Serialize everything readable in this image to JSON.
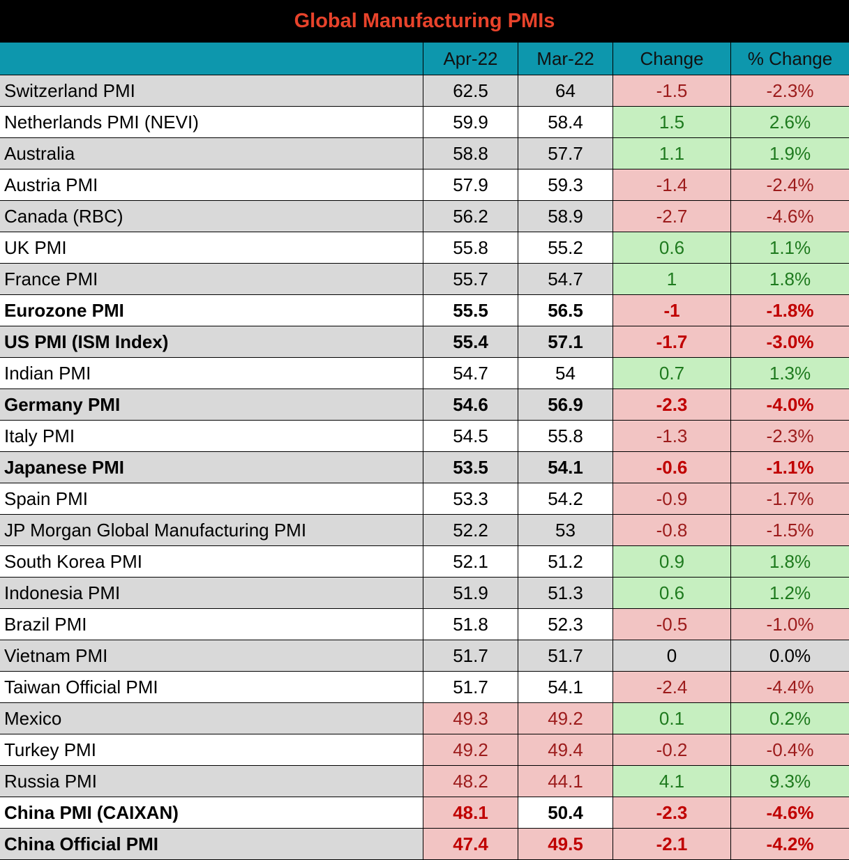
{
  "title": "Global Manufacturing PMIs",
  "colors": {
    "title_bg": "#000000",
    "title_text": "#e8432b",
    "header_bg": "#0d97ad",
    "row_shade": "#d9d9d9",
    "negative_bg": "#f2c4c3",
    "negative_text": "#9c1b1b",
    "positive_bg": "#c6efc0",
    "positive_text": "#1e7a1e"
  },
  "chart_data": {
    "type": "table",
    "title": "Global Manufacturing PMIs",
    "columns": [
      "",
      "Apr-22",
      "Mar-22",
      "Change",
      "% Change"
    ],
    "rows": [
      {
        "name": "Switzerland PMI",
        "apr": "62.5",
        "mar": "64",
        "change": "-1.5",
        "pct": "-2.3%",
        "bold": false
      },
      {
        "name": "Netherlands PMI (NEVI)",
        "apr": "59.9",
        "mar": "58.4",
        "change": "1.5",
        "pct": "2.6%",
        "bold": false
      },
      {
        "name": "Australia",
        "apr": "58.8",
        "mar": "57.7",
        "change": "1.1",
        "pct": "1.9%",
        "bold": false
      },
      {
        "name": "Austria PMI",
        "apr": "57.9",
        "mar": "59.3",
        "change": "-1.4",
        "pct": "-2.4%",
        "bold": false
      },
      {
        "name": "Canada (RBC)",
        "apr": "56.2",
        "mar": "58.9",
        "change": "-2.7",
        "pct": "-4.6%",
        "bold": false
      },
      {
        "name": "UK PMI",
        "apr": "55.8",
        "mar": "55.2",
        "change": "0.6",
        "pct": "1.1%",
        "bold": false
      },
      {
        "name": "France PMI",
        "apr": "55.7",
        "mar": "54.7",
        "change": "1",
        "pct": "1.8%",
        "bold": false
      },
      {
        "name": "Eurozone PMI",
        "apr": "55.5",
        "mar": "56.5",
        "change": "-1",
        "pct": "-1.8%",
        "bold": true
      },
      {
        "name": "US PMI (ISM Index)",
        "apr": "55.4",
        "mar": "57.1",
        "change": "-1.7",
        "pct": "-3.0%",
        "bold": true
      },
      {
        "name": "Indian PMI",
        "apr": "54.7",
        "mar": "54",
        "change": "0.7",
        "pct": "1.3%",
        "bold": false
      },
      {
        "name": "Germany PMI",
        "apr": "54.6",
        "mar": "56.9",
        "change": "-2.3",
        "pct": "-4.0%",
        "bold": true
      },
      {
        "name": "Italy PMI",
        "apr": "54.5",
        "mar": "55.8",
        "change": "-1.3",
        "pct": "-2.3%",
        "bold": false
      },
      {
        "name": "Japanese PMI",
        "apr": "53.5",
        "mar": "54.1",
        "change": "-0.6",
        "pct": "-1.1%",
        "bold": true
      },
      {
        "name": "Spain PMI",
        "apr": "53.3",
        "mar": "54.2",
        "change": "-0.9",
        "pct": "-1.7%",
        "bold": false
      },
      {
        "name": "JP Morgan Global Manufacturing PMI",
        "apr": "52.2",
        "mar": "53",
        "change": "-0.8",
        "pct": "-1.5%",
        "bold": false
      },
      {
        "name": "South Korea PMI",
        "apr": "52.1",
        "mar": "51.2",
        "change": "0.9",
        "pct": "1.8%",
        "bold": false
      },
      {
        "name": "Indonesia PMI",
        "apr": "51.9",
        "mar": "51.3",
        "change": "0.6",
        "pct": "1.2%",
        "bold": false
      },
      {
        "name": "Brazil PMI",
        "apr": "51.8",
        "mar": "52.3",
        "change": "-0.5",
        "pct": "-1.0%",
        "bold": false
      },
      {
        "name": "Vietnam PMI",
        "apr": "51.7",
        "mar": "51.7",
        "change": "0",
        "pct": "0.0%",
        "bold": false
      },
      {
        "name": "Taiwan Official PMI",
        "apr": "51.7",
        "mar": "54.1",
        "change": "-2.4",
        "pct": "-4.4%",
        "bold": false
      },
      {
        "name": "Mexico",
        "apr": "49.3",
        "mar": "49.2",
        "change": "0.1",
        "pct": "0.2%",
        "bold": false
      },
      {
        "name": "Turkey PMI",
        "apr": "49.2",
        "mar": "49.4",
        "change": "-0.2",
        "pct": "-0.4%",
        "bold": false
      },
      {
        "name": "Russia PMI",
        "apr": "48.2",
        "mar": "44.1",
        "change": "4.1",
        "pct": "9.3%",
        "bold": false
      },
      {
        "name": "China PMI (CAIXAN)",
        "apr": "48.1",
        "mar": "50.4",
        "change": "-2.3",
        "pct": "-4.6%",
        "bold": true
      },
      {
        "name": "China Official PMI",
        "apr": "47.4",
        "mar": "49.5",
        "change": "-2.1",
        "pct": "-4.2%",
        "bold": true
      }
    ]
  }
}
